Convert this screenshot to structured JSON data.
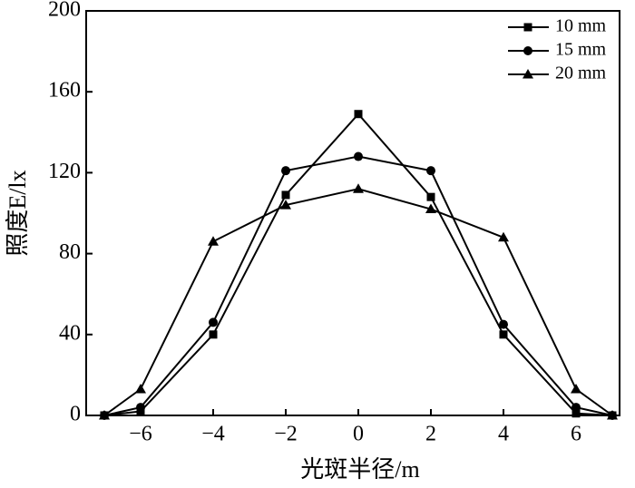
{
  "chart_data": {
    "type": "line",
    "xlabel": "光斑半径/m",
    "ylabel": "照度E/lx",
    "x": [
      -7,
      -6,
      -4,
      -2,
      0,
      2,
      4,
      6,
      7
    ],
    "series": [
      {
        "name": "10 mm",
        "color": "#000000",
        "marker": "square",
        "values": [
          0,
          2,
          40,
          109,
          149,
          108,
          40,
          1,
          0
        ]
      },
      {
        "name": "15 mm",
        "color": "#000000",
        "marker": "circle",
        "values": [
          0,
          4,
          46,
          121,
          128,
          121,
          45,
          4,
          0
        ]
      },
      {
        "name": "20 mm",
        "color": "#000000",
        "marker": "triangle",
        "values": [
          0,
          13,
          86,
          104,
          112,
          102,
          88,
          13,
          0
        ]
      }
    ],
    "xlim": [
      -7.5,
      7.2
    ],
    "xticks": [
      {
        "value": -6,
        "label": "−6"
      },
      {
        "value": -4,
        "label": "−4"
      },
      {
        "value": -2,
        "label": "−2"
      },
      0,
      2,
      4,
      6
    ],
    "ylim": [
      0,
      200
    ],
    "yticks": [
      0,
      40,
      80,
      120,
      160,
      200
    ],
    "legend": "upper right",
    "grid": false
  }
}
